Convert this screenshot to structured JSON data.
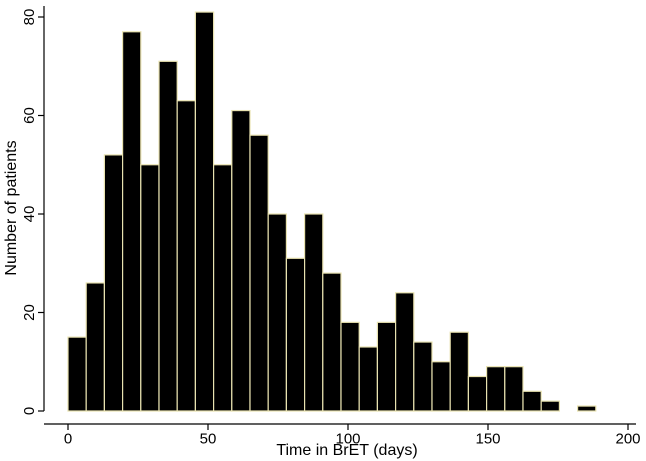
{
  "chart_data": {
    "type": "bar",
    "subtype": "histogram",
    "title": "",
    "xlabel": "Time in BrET (days)",
    "ylabel": "Number of patients",
    "xlim": [
      0,
      200
    ],
    "ylim": [
      0,
      80
    ],
    "xticks": [
      "0",
      "50",
      "100",
      "150",
      "200"
    ],
    "yticks": [
      "0",
      "20",
      "40",
      "60",
      "80"
    ],
    "bin_width": 6.5,
    "bins": [
      {
        "start": 0.0,
        "value": 15
      },
      {
        "start": 6.5,
        "value": 26
      },
      {
        "start": 13.0,
        "value": 52
      },
      {
        "start": 19.5,
        "value": 77
      },
      {
        "start": 26.0,
        "value": 50
      },
      {
        "start": 32.5,
        "value": 71
      },
      {
        "start": 39.0,
        "value": 63
      },
      {
        "start": 45.5,
        "value": 81
      },
      {
        "start": 52.0,
        "value": 50
      },
      {
        "start": 58.5,
        "value": 61
      },
      {
        "start": 65.0,
        "value": 56
      },
      {
        "start": 71.5,
        "value": 40
      },
      {
        "start": 78.0,
        "value": 31
      },
      {
        "start": 84.5,
        "value": 40
      },
      {
        "start": 91.0,
        "value": 28
      },
      {
        "start": 97.5,
        "value": 18
      },
      {
        "start": 104.0,
        "value": 13
      },
      {
        "start": 110.5,
        "value": 18
      },
      {
        "start": 117.0,
        "value": 24
      },
      {
        "start": 123.5,
        "value": 14
      },
      {
        "start": 130.0,
        "value": 10
      },
      {
        "start": 136.5,
        "value": 16
      },
      {
        "start": 143.0,
        "value": 7
      },
      {
        "start": 149.5,
        "value": 9
      },
      {
        "start": 156.0,
        "value": 9
      },
      {
        "start": 162.5,
        "value": 4
      },
      {
        "start": 169.0,
        "value": 2
      },
      {
        "start": 175.5,
        "value": 0
      },
      {
        "start": 182.0,
        "value": 1
      }
    ],
    "colors": {
      "bar_fill": "#000000",
      "bar_edge": "#e8e2b0"
    },
    "grid": false,
    "legend": "none"
  }
}
